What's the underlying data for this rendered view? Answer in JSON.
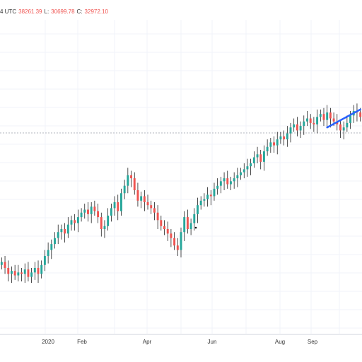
{
  "header": {
    "timezone_fragment": "4 UTC",
    "high_fragment": "38261.39",
    "low_label": "L:",
    "low_value": "30699.78",
    "close_label": "C:",
    "close_value": "32972.10"
  },
  "colors": {
    "up": "#26a69a",
    "down": "#ef5350",
    "wick": "#000000",
    "grid": "#f0f3fa",
    "dashed_line": "#b2b5be",
    "trend_line": "#2962ff",
    "header_text": "#333333",
    "value_text": "#ef5350"
  },
  "chart_data": {
    "type": "candlestick",
    "title": "",
    "xlabel": "",
    "ylabel": "",
    "x_tick_labels": [
      "2020",
      "Feb",
      "Apr",
      "Jun",
      "Aug",
      "Sep"
    ],
    "grid": true,
    "y_axis_labels_visible": false,
    "closes": [
      88,
      84,
      80,
      82,
      79,
      81,
      80,
      83,
      78,
      81,
      84,
      80,
      86,
      92,
      96,
      100,
      104,
      108,
      110,
      107,
      113,
      116,
      114,
      118,
      121,
      123,
      120,
      125,
      122,
      118,
      110,
      112,
      119,
      124,
      128,
      122,
      134,
      139,
      146,
      144,
      136,
      129,
      132,
      128,
      126,
      124,
      121,
      116,
      112,
      110,
      107,
      104,
      99,
      96,
      108,
      118,
      110,
      114,
      120,
      126,
      129,
      130,
      133,
      132,
      137,
      139,
      142,
      144,
      140,
      142,
      144,
      146,
      148,
      150,
      152,
      154,
      158,
      160,
      155,
      162,
      165,
      168,
      166,
      170,
      172,
      170,
      174,
      178,
      180,
      176,
      179,
      182,
      184,
      181,
      180,
      185,
      187,
      183,
      188,
      184,
      182,
      180,
      176,
      178,
      181,
      186,
      189,
      188,
      185
    ],
    "trend_line": [
      [
        98,
        178
      ],
      [
        108,
        190
      ]
    ]
  }
}
